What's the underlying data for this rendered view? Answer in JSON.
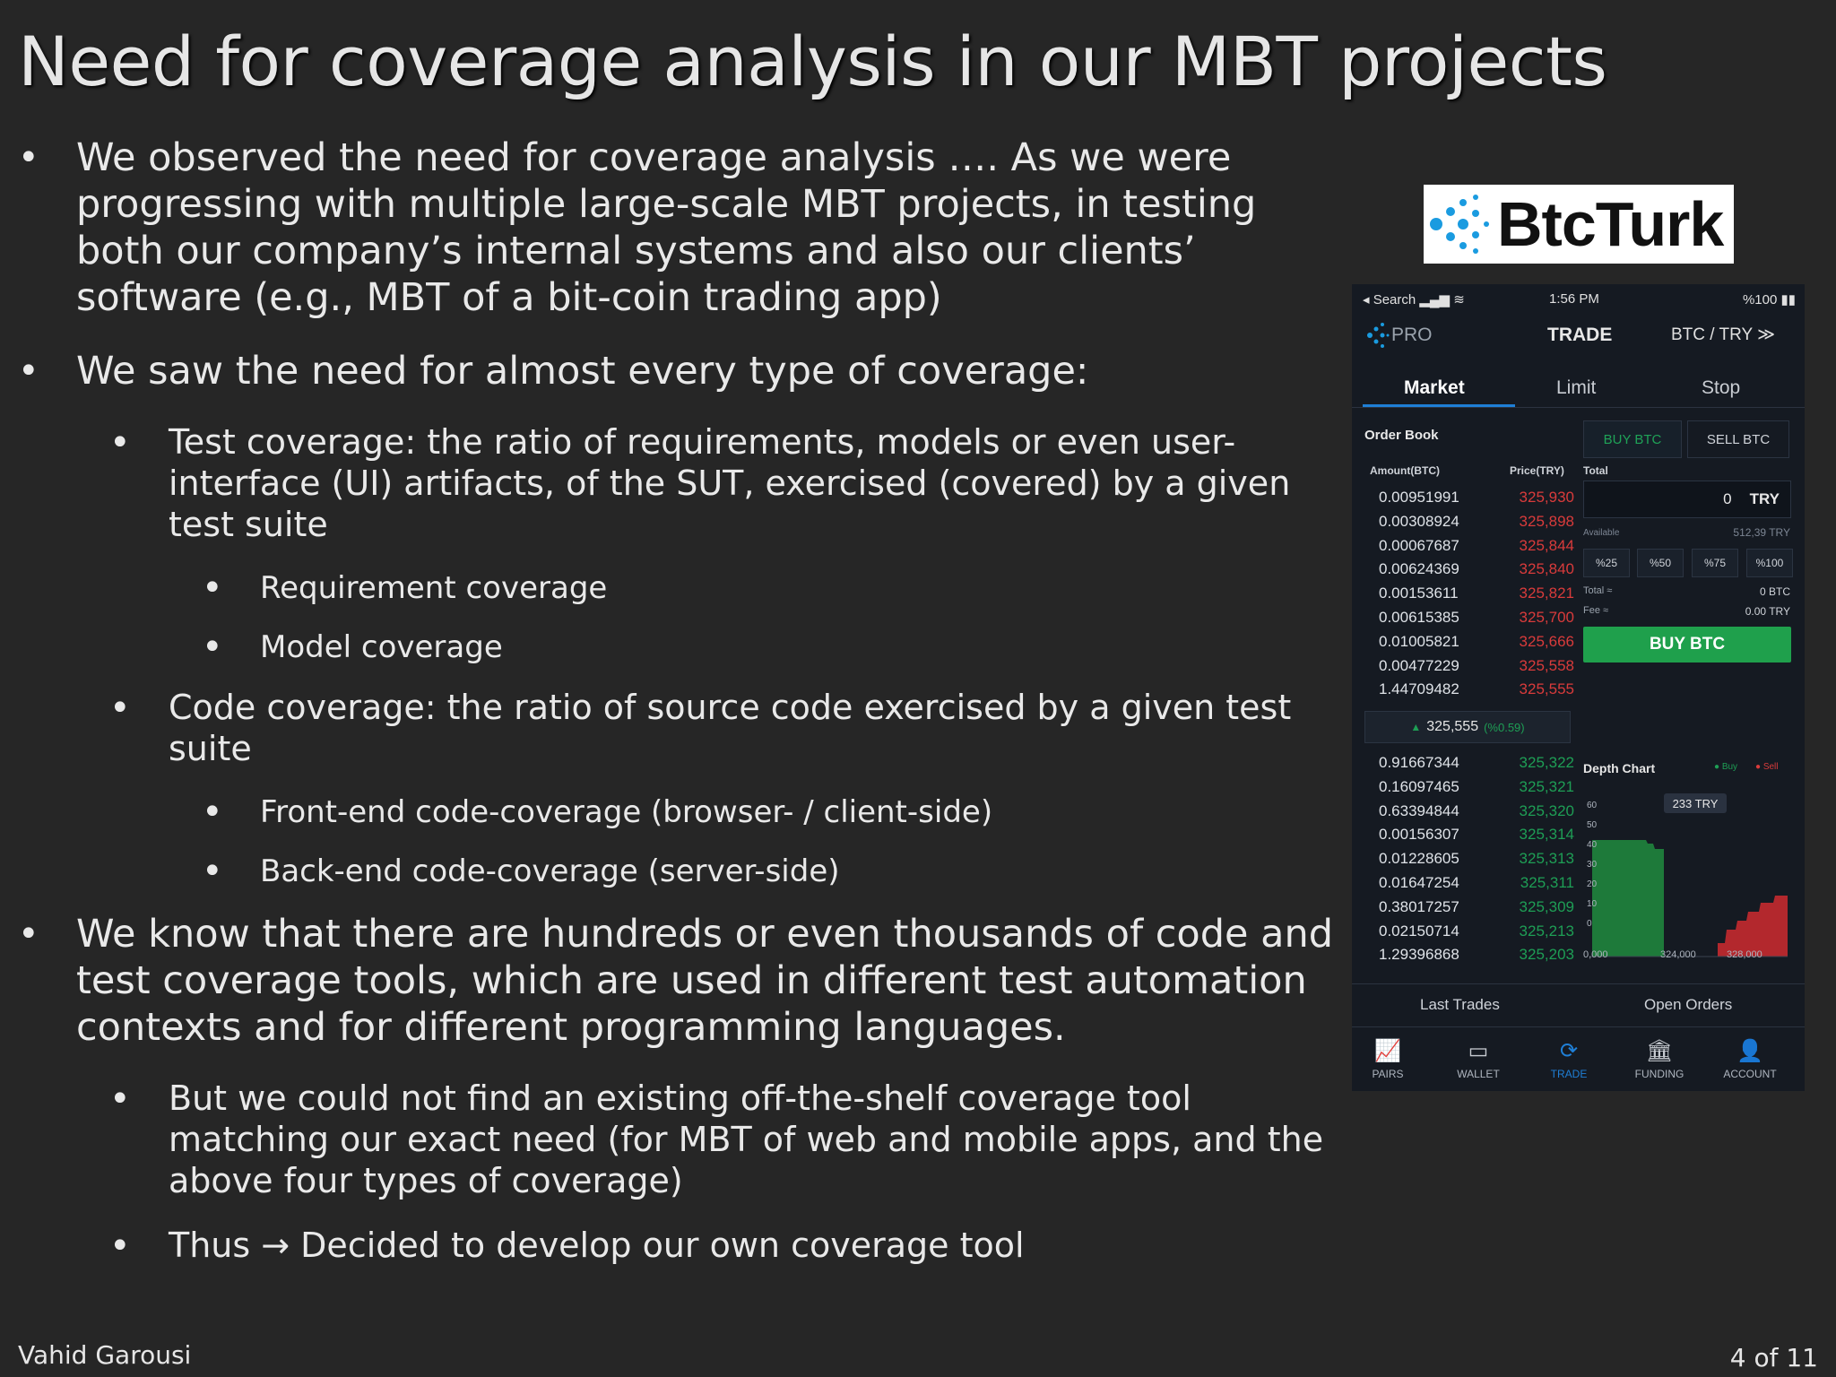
{
  "slide": {
    "title": "Need for coverage analysis in our MBT projects",
    "bullets": {
      "b1": "We observed the need for coverage analysis …. As we were progressing with multiple large-scale MBT projects, in testing both our company’s internal systems and also our clients’ software (e.g., MBT of a bit-coin trading app)",
      "b2": "We saw the need for almost every type of coverage:",
      "b2_1": "Test coverage: the ratio of requirements, models or even user-interface (UI) artifacts, of the SUT, exercised (covered) by a given test suite",
      "b2_1_1": "Requirement coverage",
      "b2_1_2": "Model coverage",
      "b2_2": "Code coverage: the ratio of source code exercised by a given test suite",
      "b2_2_1": "Front-end code-coverage (browser- / client-side)",
      "b2_2_2": "Back-end code-coverage (server-side)",
      "b3": "We know that there are hundreds or even thousands of code and test coverage tools, which are used in different test automation contexts and for different programming languages.",
      "b3_1": "But we could not find an existing off-the-shelf coverage tool matching our exact need (for MBT of web and mobile apps, and the above four types of coverage)",
      "b3_2": "Thus → Decided to develop our own coverage tool"
    },
    "footer": {
      "author": "Vahid Garousi",
      "page": "4 of 11"
    }
  },
  "logo": {
    "text": "BtcTurk",
    "mark_color": "#1a9be0"
  },
  "phone": {
    "status": {
      "left": "◂ Search ▂▄▆ ≋",
      "time": "1:56 PM",
      "battery": "%100 ▮▮"
    },
    "header": {
      "brand": "PRO",
      "title": "TRADE",
      "pair": "BTC / TRY ≫"
    },
    "tabs": [
      "Market",
      "Limit",
      "Stop"
    ],
    "order_book": {
      "title": "Order Book",
      "col_amount": "Amount(BTC)",
      "col_price": "Price(TRY)",
      "asks": [
        {
          "amount": "0.00951991",
          "price": "325,930"
        },
        {
          "amount": "0.00308924",
          "price": "325,898"
        },
        {
          "amount": "0.00067687",
          "price": "325,844"
        },
        {
          "amount": "0.00624369",
          "price": "325,840"
        },
        {
          "amount": "0.00153611",
          "price": "325,821"
        },
        {
          "amount": "0.00615385",
          "price": "325,700"
        },
        {
          "amount": "0.01005821",
          "price": "325,666"
        },
        {
          "amount": "0.00477229",
          "price": "325,558"
        },
        {
          "amount": "1.44709482",
          "price": "325,555"
        }
      ],
      "last_price": "325,555",
      "last_change": "(%0.59)",
      "bids": [
        {
          "amount": "0.91667344",
          "price": "325,322"
        },
        {
          "amount": "0.16097465",
          "price": "325,321"
        },
        {
          "amount": "0.63394844",
          "price": "325,320"
        },
        {
          "amount": "0.00156307",
          "price": "325,314"
        },
        {
          "amount": "0.01228605",
          "price": "325,313"
        },
        {
          "amount": "0.01647254",
          "price": "325,311"
        },
        {
          "amount": "0.38017257",
          "price": "325,309"
        },
        {
          "amount": "0.02150714",
          "price": "325,213"
        },
        {
          "amount": "1.29396868",
          "price": "325,203"
        }
      ]
    },
    "order_form": {
      "buy_tab": "BUY BTC",
      "sell_tab": "SELL BTC",
      "total_label": "Total",
      "total_value": "0",
      "total_currency": "TRY",
      "available_label": "Available",
      "available_value": "512,39 TRY",
      "percents": [
        "%25",
        "%50",
        "%75",
        "%100"
      ],
      "total_eq_label": "Total ≈",
      "total_eq_value": "0 BTC",
      "fee_label": "Fee ≈",
      "fee_value": "0.00 TRY",
      "buy_button": "BUY BTC"
    },
    "depth_chart": {
      "title": "Depth Chart",
      "legend_buy": "Buy",
      "legend_sell": "Sell",
      "tooltip": "233 TRY",
      "y_ticks": [
        "60",
        "50",
        "40",
        "30",
        "20",
        "10",
        "0"
      ],
      "x_ticks": [
        "0,000",
        "324,000",
        "328,000"
      ],
      "buy_color": "#1e7a3a",
      "sell_color": "#b3282d"
    },
    "bottom_tabs": [
      "Last Trades",
      "Open Orders"
    ],
    "nav": [
      {
        "label": "PAIRS",
        "icon": "📈"
      },
      {
        "label": "WALLET",
        "icon": "▭"
      },
      {
        "label": "TRADE",
        "icon": "⟳"
      },
      {
        "label": "FUNDING",
        "icon": "🏛"
      },
      {
        "label": "ACCOUNT",
        "icon": "👤"
      }
    ]
  }
}
